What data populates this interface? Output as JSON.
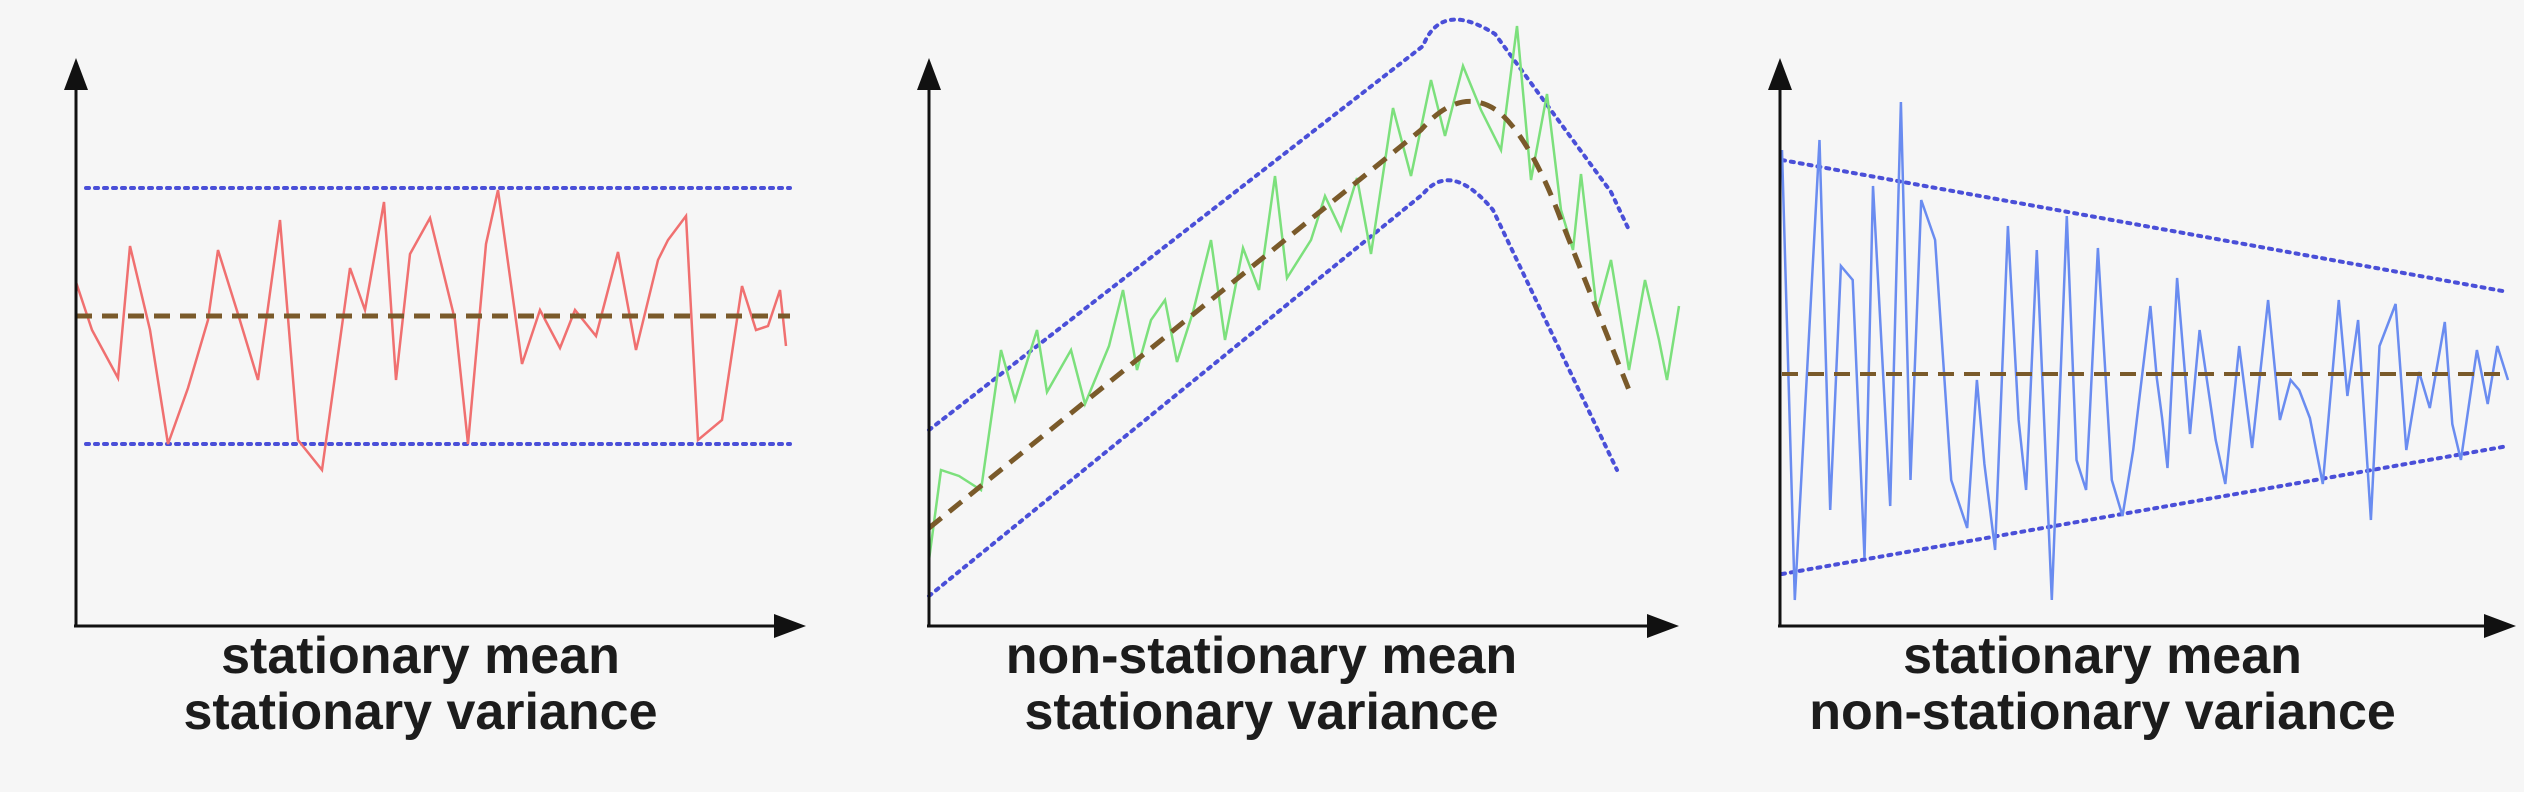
{
  "colors": {
    "background": "#f6f6f6",
    "axis": "#111111",
    "mean_line": "#7a5a2a",
    "envelope": "#4a4fd8"
  },
  "panels": [
    {
      "caption": [
        "stationary mean",
        "stationary variance"
      ],
      "series_color": "#f07070"
    },
    {
      "caption": [
        "non-stationary mean",
        "stationary variance"
      ],
      "series_color": "#7ce07c"
    },
    {
      "caption": [
        "stationary mean",
        "non-stationary variance"
      ],
      "series_color": "#6a8cf0"
    }
  ]
}
